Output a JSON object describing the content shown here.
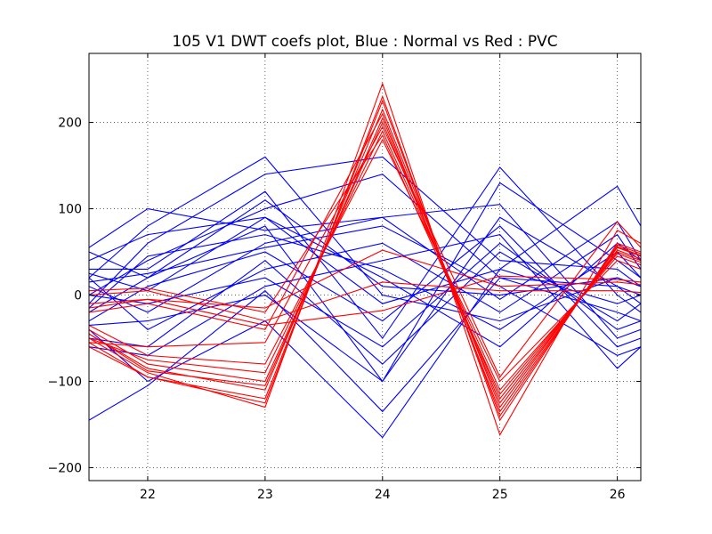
{
  "chart_data": {
    "type": "line",
    "title": "105 V1 DWT coefs plot, Blue : Normal vs Red : PVC",
    "xlabel": "",
    "ylabel": "",
    "x": [
      21.5,
      22,
      23,
      24,
      25,
      26,
      26.2
    ],
    "xlim": [
      21.5,
      26.2
    ],
    "ylim": [
      -215,
      280
    ],
    "xticks": [
      22,
      23,
      24,
      25,
      26
    ],
    "yticks": [
      -200,
      -100,
      0,
      100,
      200
    ],
    "xtick_labels": [
      "22",
      "23",
      "24",
      "25",
      "26"
    ],
    "ytick_labels": [
      "−200",
      "−100",
      "0",
      "100",
      "200"
    ],
    "grid": true,
    "series": [
      {
        "class": "Normal",
        "color": "#0000ff",
        "values": [
          -145,
          -105,
          5,
          -135,
          20,
          -20,
          -30
        ]
      },
      {
        "class": "Normal",
        "color": "#0000ff",
        "values": [
          55,
          100,
          75,
          90,
          -5,
          85,
          40
        ]
      },
      {
        "class": "Normal",
        "color": "#0000ff",
        "values": [
          20,
          80,
          160,
          0,
          -30,
          20,
          10
        ]
      },
      {
        "class": "Normal",
        "color": "#0000ff",
        "values": [
          -10,
          60,
          140,
          160,
          40,
          30,
          10
        ]
      },
      {
        "class": "Normal",
        "color": "#0000ff",
        "values": [
          0,
          40,
          100,
          140,
          20,
          10,
          0
        ]
      },
      {
        "class": "Normal",
        "color": "#0000ff",
        "values": [
          30,
          30,
          120,
          -50,
          148,
          0,
          -20
        ]
      },
      {
        "class": "Normal",
        "color": "#0000ff",
        "values": [
          -20,
          20,
          80,
          -100,
          130,
          40,
          20
        ]
      },
      {
        "class": "Normal",
        "color": "#0000ff",
        "values": [
          10,
          -20,
          60,
          90,
          105,
          -50,
          -40
        ]
      },
      {
        "class": "Normal",
        "color": "#0000ff",
        "values": [
          -40,
          -100,
          -30,
          -165,
          30,
          126,
          80
        ]
      },
      {
        "class": "Normal",
        "color": "#0000ff",
        "values": [
          -60,
          -70,
          10,
          40,
          70,
          -85,
          -60
        ]
      },
      {
        "class": "Normal",
        "color": "#0000ff",
        "values": [
          40,
          70,
          90,
          20,
          -60,
          60,
          40
        ]
      },
      {
        "class": "Normal",
        "color": "#0000ff",
        "values": [
          -30,
          10,
          50,
          -30,
          80,
          -60,
          -50
        ]
      },
      {
        "class": "Normal",
        "color": "#0000ff",
        "values": [
          20,
          -40,
          30,
          60,
          -20,
          70,
          30
        ]
      },
      {
        "class": "Normal",
        "color": "#0000ff",
        "values": [
          -50,
          -60,
          40,
          -80,
          50,
          -30,
          -10
        ]
      },
      {
        "class": "Normal",
        "color": "#0000ff",
        "values": [
          50,
          20,
          110,
          10,
          0,
          20,
          10
        ]
      },
      {
        "class": "Normal",
        "color": "#0000ff",
        "values": [
          0,
          -10,
          20,
          -60,
          60,
          -40,
          -30
        ]
      },
      {
        "class": "Normal",
        "color": "#0000ff",
        "values": [
          -15,
          45,
          70,
          30,
          -40,
          50,
          20
        ]
      },
      {
        "class": "Normal",
        "color": "#0000ff",
        "values": [
          25,
          5,
          90,
          -10,
          30,
          -10,
          0
        ]
      },
      {
        "class": "Normal",
        "color": "#0000ff",
        "values": [
          -35,
          -30,
          0,
          -100,
          90,
          10,
          -10
        ]
      },
      {
        "class": "Normal",
        "color": "#0000ff",
        "values": [
          15,
          25,
          55,
          80,
          10,
          -70,
          -60
        ]
      },
      {
        "class": "PVC",
        "color": "#ff0000",
        "values": [
          -50,
          -90,
          -130,
          245,
          -162,
          75,
          60
        ]
      },
      {
        "class": "PVC",
        "color": "#ff0000",
        "values": [
          -55,
          -95,
          -125,
          230,
          -145,
          60,
          50
        ]
      },
      {
        "class": "PVC",
        "color": "#ff0000",
        "values": [
          -45,
          -85,
          -110,
          215,
          -130,
          55,
          45
        ]
      },
      {
        "class": "PVC",
        "color": "#ff0000",
        "values": [
          -40,
          -80,
          -100,
          200,
          -120,
          50,
          40
        ]
      },
      {
        "class": "PVC",
        "color": "#ff0000",
        "values": [
          -50,
          -75,
          -90,
          190,
          -110,
          45,
          35
        ]
      },
      {
        "class": "PVC",
        "color": "#ff0000",
        "values": [
          -35,
          -70,
          -80,
          180,
          -100,
          40,
          30
        ]
      },
      {
        "class": "PVC",
        "color": "#ff0000",
        "values": [
          -60,
          -95,
          -120,
          225,
          -140,
          58,
          48
        ]
      },
      {
        "class": "PVC",
        "color": "#ff0000",
        "values": [
          -45,
          -88,
          -105,
          205,
          -125,
          52,
          42
        ]
      },
      {
        "class": "PVC",
        "color": "#ff0000",
        "values": [
          -55,
          -60,
          -55,
          195,
          -95,
          85,
          55
        ]
      },
      {
        "class": "PVC",
        "color": "#ff0000",
        "values": [
          5,
          8,
          -20,
          185,
          -115,
          48,
          38
        ]
      },
      {
        "class": "PVC",
        "color": "#ff0000",
        "values": [
          -20,
          -10,
          -40,
          210,
          -135,
          56,
          46
        ]
      },
      {
        "class": "PVC",
        "color": "#ff0000",
        "values": [
          -10,
          -5,
          -35,
          -18,
          22,
          18,
          15
        ]
      },
      {
        "class": "PVC",
        "color": "#ff0000",
        "values": [
          -15,
          -5,
          -15,
          52,
          10,
          15,
          12
        ]
      },
      {
        "class": "PVC",
        "color": "#ff0000",
        "values": [
          0,
          5,
          -30,
          15,
          5,
          5,
          3
        ]
      }
    ]
  }
}
